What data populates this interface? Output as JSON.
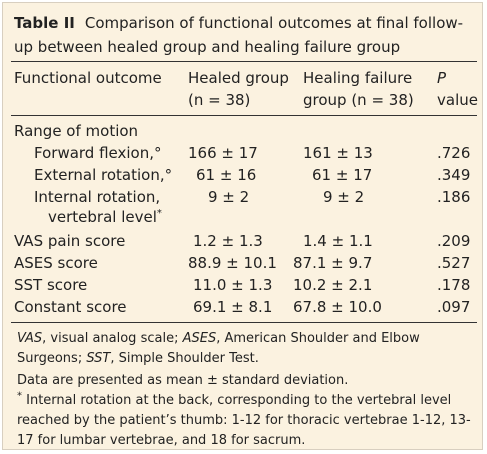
{
  "table": {
    "label": "Table II",
    "title": "Comparison of functional outcomes at final follow-up between healed group and healing failure group",
    "headers": {
      "col1": "Functional outcome",
      "col2_line1": "Healed group",
      "col2_line2": "(n = 38)",
      "col3_line1": "Healing failure",
      "col3_line2": "group (n = 38)",
      "col4_line1": "P",
      "col4_line2": "value"
    },
    "section_rom": "Range of motion",
    "rows": [
      {
        "label": "Forward flexion,°",
        "healed": "166 ± 17",
        "failure": "161 ± 13",
        "p": ".726"
      },
      {
        "label": "External rotation,°",
        "healed": "61 ± 16",
        "failure": "61 ± 17",
        "p": ".349"
      },
      {
        "label": "Internal rotation,",
        "label2": "vertebral level",
        "sup": "*",
        "healed": "9 ± 2",
        "failure": "9 ± 2",
        "p": ".186"
      },
      {
        "label": "VAS pain score",
        "healed": "1.2 ± 1.3",
        "failure": "1.4 ± 1.1",
        "p": ".209"
      },
      {
        "label": "ASES score",
        "healed": "88.9 ± 10.1",
        "failure": "87.1 ± 9.7",
        "p": ".527"
      },
      {
        "label": "SST score",
        "healed": "11.0 ± 1.3",
        "failure": "10.2 ± 2.1",
        "p": ".178"
      },
      {
        "label": "Constant score",
        "healed": "69.1 ± 8.1",
        "failure": "67.8 ± 10.0",
        "p": ".097"
      }
    ],
    "footnotes": {
      "abbr_vas": "VAS",
      "abbr_vas_text": ", visual analog scale; ",
      "abbr_ases": "ASES",
      "abbr_ases_text": ", American Shoulder and Elbow Surgeons; ",
      "abbr_sst": "SST",
      "abbr_sst_text": ", Simple Shoulder Test.",
      "data_note": "Data are presented as mean ± standard deviation.",
      "star": "*",
      "ir_note": "Internal rotation at the back, corresponding to the vertebral level reached by the patient’s thumb: 1-12 for thoracic vertebrae 1-12, 13-17 for lumbar vertebrae, and 18 for sacrum."
    }
  }
}
